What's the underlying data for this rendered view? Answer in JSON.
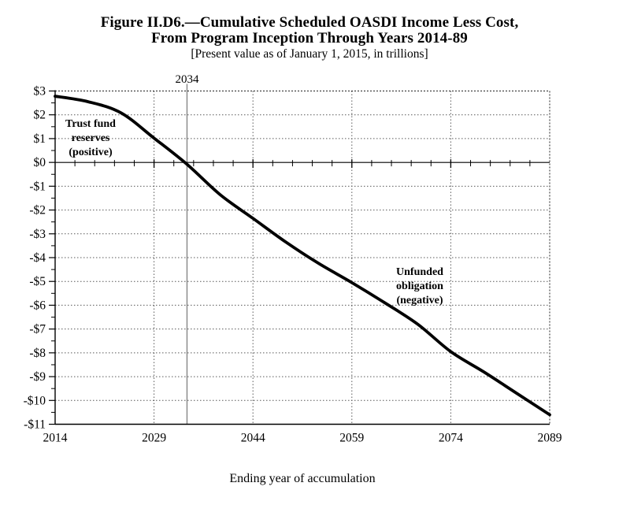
{
  "figure": {
    "title_line1": "Figure II.D6.—Cumulative Scheduled OASDI Income Less Cost,",
    "title_line2": "From Program Inception Through Years 2014-89",
    "subtitle": "[Present value as of January 1, 2015, in trillions]"
  },
  "annotations": {
    "reference_year_label": "2034",
    "trust_fund_lines": [
      "Trust fund",
      "reserves",
      "(positive)"
    ],
    "unfunded_lines": [
      "Unfunded",
      "obligation",
      "(negative)"
    ]
  },
  "chart_data": {
    "type": "line",
    "title": "Figure II.D6.—Cumulative Scheduled OASDI Income Less Cost, From Program Inception Through Years 2014-89",
    "subtitle": "[Present value as of January 1, 2015, in trillions]",
    "xlabel": "Ending year of accumulation",
    "ylabel": "",
    "x_range": [
      2014,
      2089
    ],
    "y_range": [
      -11,
      3
    ],
    "x_ticks": [
      2014,
      2029,
      2044,
      2059,
      2074,
      2089
    ],
    "x_tick_labels": [
      "2014",
      "2029",
      "2044",
      "2059",
      "2074",
      "2089"
    ],
    "x_minor_tick_step_years": 3,
    "y_ticks": [
      3,
      2,
      1,
      0,
      -1,
      -2,
      -3,
      -4,
      -5,
      -6,
      -7,
      -8,
      -9,
      -10,
      -11
    ],
    "y_tick_labels": [
      "$3",
      "$2",
      "$1",
      "$0",
      "-$1",
      "-$2",
      "-$3",
      "-$4",
      "-$5",
      "-$6",
      "-$7",
      "-$8",
      "-$9",
      "-$10",
      "-$11"
    ],
    "y_minor_tick_step": 0.5,
    "grid": {
      "horizontal": "dotted",
      "vertical": "dotted",
      "zero_line": "solid"
    },
    "legend": "none",
    "reference_line_x": 2034,
    "series": [
      {
        "name": "Cumulative scheduled OASDI income less cost (present value, trillions)",
        "x": [
          2014,
          2019,
          2024,
          2029,
          2034,
          2039,
          2044,
          2049,
          2054,
          2059,
          2064,
          2069,
          2074,
          2079,
          2084,
          2089
        ],
        "values": [
          2.78,
          2.55,
          2.08,
          1.02,
          -0.08,
          -1.35,
          -2.35,
          -3.35,
          -4.25,
          -5.05,
          -5.9,
          -6.8,
          -7.95,
          -8.8,
          -9.7,
          -10.6
        ]
      }
    ],
    "colors": {
      "line": "#000000",
      "reference_line": "#8c8c8c",
      "grid": "#595959",
      "axis": "#000000"
    }
  }
}
